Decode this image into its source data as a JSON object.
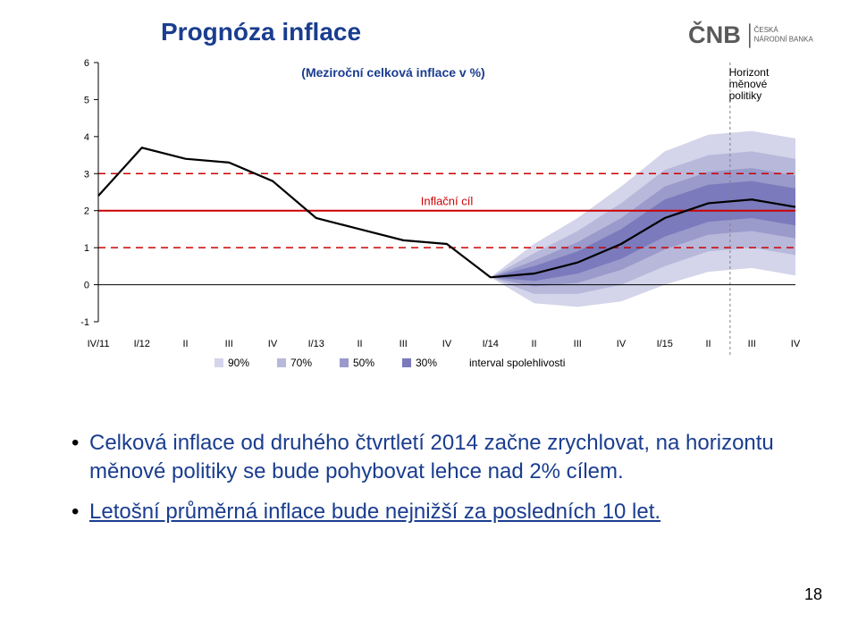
{
  "title": {
    "text": "Prognóza inflace",
    "color": "#1a3d8f",
    "fontsize": 28
  },
  "logo": {
    "text1": "ČNB",
    "text2": "ČESKÁ",
    "text3": "NÁRODNÍ BANKA",
    "color": "#5a5a5a"
  },
  "page_number": "18",
  "bullet1": {
    "color": "#1a3d8f",
    "text": "Celková inflace od druhého čtvrtletí 2014 začne zrychlovat, na horizontu měnové politiky se bude pohybovat lehce nad 2% cílem."
  },
  "bullet2": {
    "color": "#1a3d8f",
    "text": "Letošní průměrná inflace bude nejnižší za posledních 10 let."
  },
  "chart": {
    "subtitle": {
      "text": "(Meziroční celková inflace v %)",
      "color": "#1a3d8f",
      "fontsize": 14,
      "weight": "bold"
    },
    "inflation_target": {
      "label": "Inflační cíl",
      "color": "#cc0000",
      "fontsize": 13,
      "target": 2,
      "lower": 1,
      "upper": 3,
      "line_color": "#cc0000"
    },
    "horizon": {
      "label": "Horizont\nměnové\npolitiky",
      "fontsize": 12,
      "x_start": 14.5,
      "x_end": 16.5,
      "line_color": "#808080"
    },
    "ylim": [
      -1,
      6
    ],
    "ytick_step": 1,
    "axis_color": "#000000",
    "axis_fontsize": 11,
    "x_labels": [
      "IV/11",
      "I/12",
      "II",
      "III",
      "IV",
      "I/13",
      "II",
      "III",
      "IV",
      "I/14",
      "II",
      "III",
      "IV",
      "I/15",
      "II",
      "III",
      "IV"
    ],
    "history_end_index": 9,
    "median": [
      2.4,
      3.7,
      3.4,
      3.3,
      2.8,
      1.8,
      1.5,
      1.2,
      1.1,
      0.2,
      0.3,
      0.6,
      1.1,
      1.8,
      2.2,
      2.3,
      2.1
    ],
    "history_color": "#000000",
    "history_width": 2.2,
    "fan": {
      "colors": {
        "90": "#d4d4ea",
        "70": "#b8b8db",
        "50": "#9a9acb",
        "30": "#7a7abc"
      },
      "legend_box_color": "#808080",
      "legend_label": "interval spolehlivosti",
      "legend_items": [
        "90%",
        "70%",
        "50%",
        "30%"
      ],
      "bands": {
        "30": {
          "lo": [
            0.2,
            0.1,
            0.3,
            0.7,
            1.3,
            1.7,
            1.8,
            1.6
          ],
          "hi": [
            0.2,
            0.5,
            0.9,
            1.5,
            2.3,
            2.7,
            2.8,
            2.6
          ]
        },
        "50": {
          "lo": [
            0.2,
            -0.05,
            0.05,
            0.4,
            0.95,
            1.35,
            1.45,
            1.25
          ],
          "hi": [
            0.2,
            0.65,
            1.15,
            1.8,
            2.65,
            3.05,
            3.15,
            2.95
          ]
        },
        "70": {
          "lo": [
            0.2,
            -0.25,
            -0.25,
            0.0,
            0.5,
            0.9,
            1.0,
            0.8
          ],
          "hi": [
            0.2,
            0.85,
            1.45,
            2.2,
            3.1,
            3.5,
            3.6,
            3.4
          ]
        },
        "90": {
          "lo": [
            0.2,
            -0.5,
            -0.6,
            -0.45,
            0.0,
            0.35,
            0.45,
            0.25
          ],
          "hi": [
            0.2,
            1.1,
            1.8,
            2.65,
            3.6,
            4.05,
            4.15,
            3.95
          ]
        }
      }
    }
  }
}
